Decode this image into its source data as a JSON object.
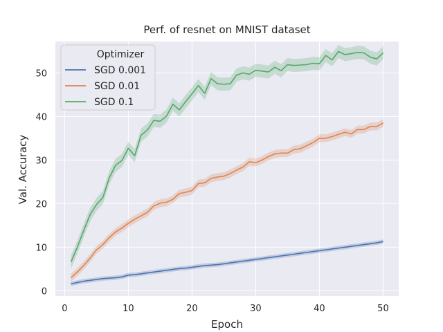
{
  "chart_data": {
    "type": "line",
    "title": "Perf. of resnet on MNIST dataset",
    "xlabel": "Epoch",
    "ylabel": "Val. Accuracy",
    "xlim": [
      -1.45,
      52.45
    ],
    "ylim": [
      -1.2,
      57.2
    ],
    "xticks": [
      0,
      10,
      20,
      30,
      40,
      50
    ],
    "yticks": [
      0,
      10,
      20,
      30,
      40,
      50
    ],
    "grid": true,
    "legend": {
      "title": "Optimizer",
      "placement": "top-left"
    },
    "x": [
      1,
      2,
      3,
      4,
      5,
      6,
      7,
      8,
      9,
      10,
      11,
      12,
      13,
      14,
      15,
      16,
      17,
      18,
      19,
      20,
      21,
      22,
      23,
      24,
      25,
      26,
      27,
      28,
      29,
      30,
      31,
      32,
      33,
      34,
      35,
      36,
      37,
      38,
      39,
      40,
      41,
      42,
      43,
      44,
      45,
      46,
      47,
      48,
      49,
      50
    ],
    "series": [
      {
        "name": "SGD 0.001",
        "color": "#4c72b0",
        "values": [
          1.6,
          1.9,
          2.2,
          2.4,
          2.6,
          2.8,
          2.9,
          3.0,
          3.2,
          3.6,
          3.7,
          3.9,
          4.1,
          4.3,
          4.5,
          4.7,
          4.9,
          5.1,
          5.2,
          5.4,
          5.6,
          5.8,
          5.9,
          6.0,
          6.2,
          6.4,
          6.6,
          6.8,
          7.0,
          7.2,
          7.4,
          7.6,
          7.8,
          8.0,
          8.2,
          8.4,
          8.6,
          8.8,
          9.0,
          9.2,
          9.4,
          9.6,
          9.8,
          10.0,
          10.2,
          10.4,
          10.6,
          10.8,
          11.0,
          11.3
        ],
        "band": 0.5
      },
      {
        "name": "SGD 0.01",
        "color": "#dd8452",
        "values": [
          3.0,
          4.3,
          5.8,
          7.5,
          9.4,
          10.6,
          12.2,
          13.5,
          14.4,
          15.5,
          16.4,
          17.2,
          18.0,
          19.5,
          20.1,
          20.3,
          21.0,
          22.3,
          22.6,
          23.0,
          24.6,
          24.8,
          25.8,
          26.1,
          26.3,
          26.9,
          27.7,
          28.4,
          29.6,
          29.4,
          30.0,
          30.8,
          31.4,
          31.6,
          31.6,
          32.4,
          32.6,
          33.3,
          34.0,
          35.0,
          35.0,
          35.4,
          35.9,
          36.4,
          36.0,
          37.0,
          37.0,
          37.7,
          37.7,
          38.5
        ],
        "band": 0.9
      },
      {
        "name": "SGD 0.1",
        "color": "#55a868",
        "values": [
          6.6,
          10.0,
          13.8,
          17.5,
          19.8,
          21.4,
          25.9,
          28.8,
          29.9,
          32.7,
          31.0,
          35.7,
          36.9,
          39.1,
          38.9,
          40.1,
          42.8,
          41.5,
          43.4,
          45.2,
          47.1,
          45.3,
          48.7,
          47.5,
          47.4,
          47.5,
          49.5,
          50.0,
          49.7,
          50.6,
          50.4,
          50.2,
          51.3,
          50.5,
          51.9,
          51.7,
          51.8,
          51.9,
          52.2,
          52.1,
          54.0,
          53.0,
          54.9,
          54.2,
          54.4,
          54.7,
          54.6,
          53.6,
          53.2,
          54.6
        ],
        "band": 1.5
      }
    ]
  }
}
